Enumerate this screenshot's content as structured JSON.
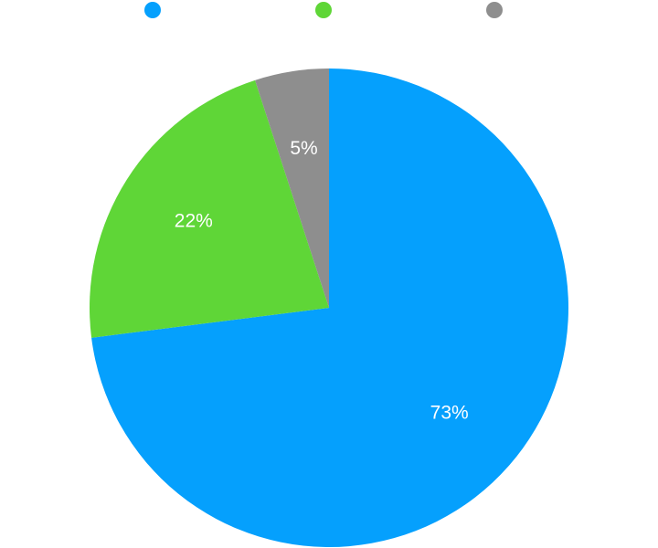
{
  "chart_data": {
    "type": "pie",
    "values": [
      73,
      22,
      5
    ],
    "value_labels": [
      "73%",
      "22%",
      "5%"
    ],
    "colors": [
      "#05a0fd",
      "#5fd637",
      "#8e8e8e"
    ]
  }
}
